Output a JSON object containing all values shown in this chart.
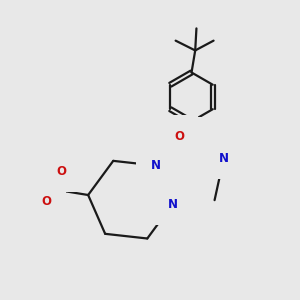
{
  "bg_color": "#e8e8e8",
  "bond_color": "#1a1a1a",
  "n_color": "#1010cc",
  "o_color": "#cc1010",
  "lw": 1.6,
  "fs": 8.5,
  "figsize": [
    3.0,
    3.0
  ],
  "dpi": 100,
  "xlim": [
    0.0,
    1.0
  ],
  "ylim": [
    0.0,
    1.0
  ]
}
